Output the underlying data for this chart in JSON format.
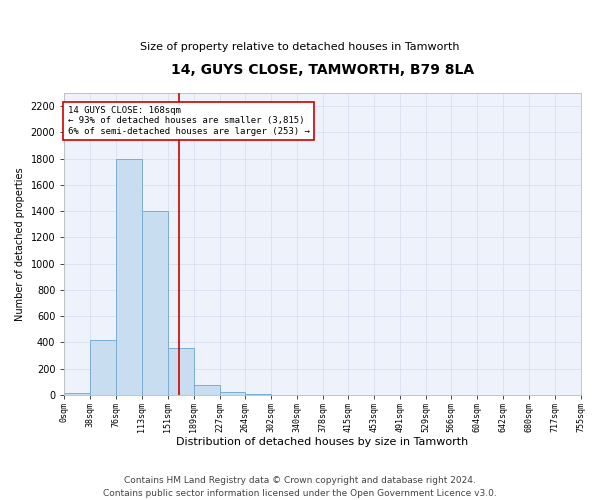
{
  "title": "14, GUYS CLOSE, TAMWORTH, B79 8LA",
  "subtitle": "Size of property relative to detached houses in Tamworth",
  "xlabel": "Distribution of detached houses by size in Tamworth",
  "ylabel": "Number of detached properties",
  "bar_color": "#c9ddf0",
  "bar_edge_color": "#7aadd4",
  "background_color": "#eef2fa",
  "grid_color": "#d8e0f0",
  "vline_value": 168,
  "vline_color": "#cc0000",
  "annotation_text": "14 GUYS CLOSE: 168sqm\n← 93% of detached houses are smaller (3,815)\n6% of semi-detached houses are larger (253) →",
  "annotation_box_color": "#cc0000",
  "bin_edges": [
    0,
    38,
    76,
    113,
    151,
    189,
    227,
    264,
    302,
    340,
    378,
    415,
    453,
    491,
    529,
    566,
    604,
    642,
    680,
    717,
    755
  ],
  "bin_counts": [
    15,
    420,
    1800,
    1400,
    355,
    75,
    25,
    10,
    0,
    0,
    0,
    0,
    0,
    0,
    0,
    0,
    0,
    0,
    0,
    0
  ],
  "ylim": [
    0,
    2300
  ],
  "yticks": [
    0,
    200,
    400,
    600,
    800,
    1000,
    1200,
    1400,
    1600,
    1800,
    2000,
    2200
  ],
  "footnote": "Contains HM Land Registry data © Crown copyright and database right 2024.\nContains public sector information licensed under the Open Government Licence v3.0.",
  "footnote_fontsize": 6.5,
  "title_fontsize": 10,
  "subtitle_fontsize": 8,
  "ylabel_fontsize": 7,
  "xlabel_fontsize": 8,
  "ytick_fontsize": 7,
  "xtick_fontsize": 6
}
